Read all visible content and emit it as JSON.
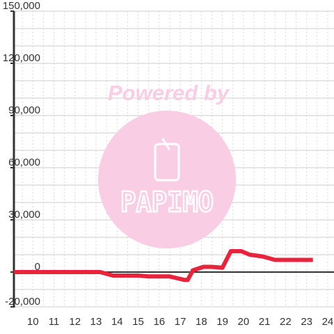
{
  "watermark": {
    "text": "Powered by",
    "logo_text": "PAPIMO"
  },
  "colors": {
    "line": "#e8233c",
    "grid_major": "#cccccc",
    "grid_minor": "#d8d8d8",
    "axis": "#333333",
    "watermark": "#f9cde3"
  },
  "chart_data": {
    "type": "line",
    "title": "",
    "xlabel": "",
    "ylabel": "",
    "xlim": [
      9.1,
      24.3
    ],
    "ylim": [
      -20000,
      150000
    ],
    "x_ticks": [
      "10",
      "11",
      "12",
      "13",
      "14",
      "15",
      "16",
      "17",
      "18",
      "19",
      "20",
      "21",
      "22",
      "23",
      "24"
    ],
    "y_ticks": [
      "150,000",
      "120,000",
      "90,000",
      "60,000",
      "30,000",
      "0",
      "-20,000"
    ],
    "grid": true,
    "legend": "none",
    "series": [
      {
        "x": [
          9.1,
          13.2,
          13.8,
          14.5,
          15.0,
          15.5,
          16.5,
          17.2,
          17.35,
          17.6,
          18.1,
          18.5,
          19.0,
          19.4,
          19.9,
          20.3,
          20.9,
          21.5,
          22.1,
          23.3
        ],
        "y": [
          0,
          0,
          -2000,
          -2000,
          -2000,
          -2500,
          -2500,
          -4500,
          -4500,
          1000,
          3000,
          3000,
          2500,
          12000,
          12000,
          10000,
          9000,
          7000,
          7000,
          7000
        ]
      }
    ]
  }
}
